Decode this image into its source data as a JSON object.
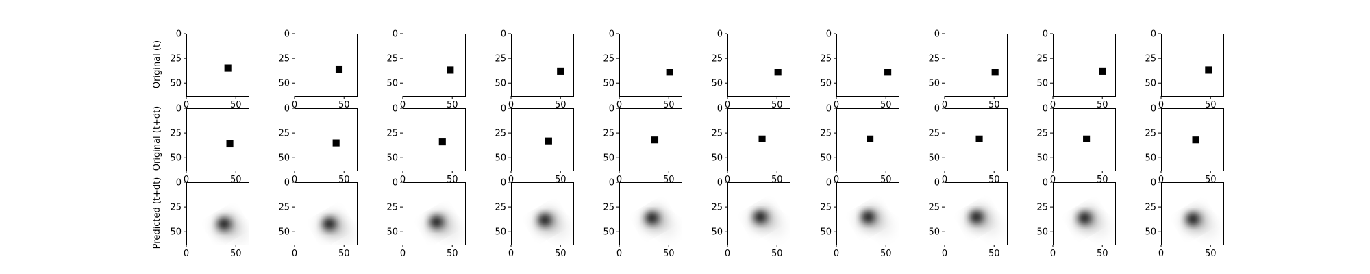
{
  "chart_data": {
    "type": "image_grid",
    "rows": [
      {
        "label": "Original (t)",
        "kind": "square"
      },
      {
        "label": "Original (t+dt)",
        "kind": "square"
      },
      {
        "label": "Predicted (t+dt)",
        "kind": "blob"
      }
    ],
    "image_size": 64,
    "axis_range": [
      0,
      63
    ],
    "x_ticks": [
      0,
      50
    ],
    "y_ticks": [
      0,
      25,
      50
    ],
    "x_tick_labels": [
      "0",
      "50"
    ],
    "y_tick_labels": [
      "0",
      "25",
      "50"
    ],
    "square_size": 7,
    "panels": [
      {
        "orig_t": [
          42,
          35
        ],
        "orig_tdt": [
          44,
          36
        ],
        "pred": [
          38,
          42
        ]
      },
      {
        "orig_t": [
          45,
          36
        ],
        "orig_tdt": [
          42,
          35
        ],
        "pred": [
          35,
          42
        ]
      },
      {
        "orig_t": [
          48,
          37
        ],
        "orig_tdt": [
          40,
          34
        ],
        "pred": [
          34,
          40
        ]
      },
      {
        "orig_t": [
          50,
          38
        ],
        "orig_tdt": [
          38,
          33
        ],
        "pred": [
          34,
          38
        ]
      },
      {
        "orig_t": [
          51,
          39
        ],
        "orig_tdt": [
          36,
          32
        ],
        "pred": [
          33,
          36
        ]
      },
      {
        "orig_t": [
          51,
          39
        ],
        "orig_tdt": [
          35,
          31
        ],
        "pred": [
          33,
          35
        ]
      },
      {
        "orig_t": [
          52,
          39
        ],
        "orig_tdt": [
          34,
          31
        ],
        "pred": [
          32,
          35
        ]
      },
      {
        "orig_t": [
          51,
          39
        ],
        "orig_tdt": [
          35,
          31
        ],
        "pred": [
          32,
          35
        ]
      },
      {
        "orig_t": [
          50,
          38
        ],
        "orig_tdt": [
          34,
          31
        ],
        "pred": [
          32,
          36
        ]
      },
      {
        "orig_t": [
          48,
          37
        ],
        "orig_tdt": [
          35,
          32
        ],
        "pred": [
          32,
          37
        ]
      }
    ],
    "colors": {
      "background": "#ffffff",
      "foreground": "#000000",
      "axis": "#000000"
    }
  }
}
